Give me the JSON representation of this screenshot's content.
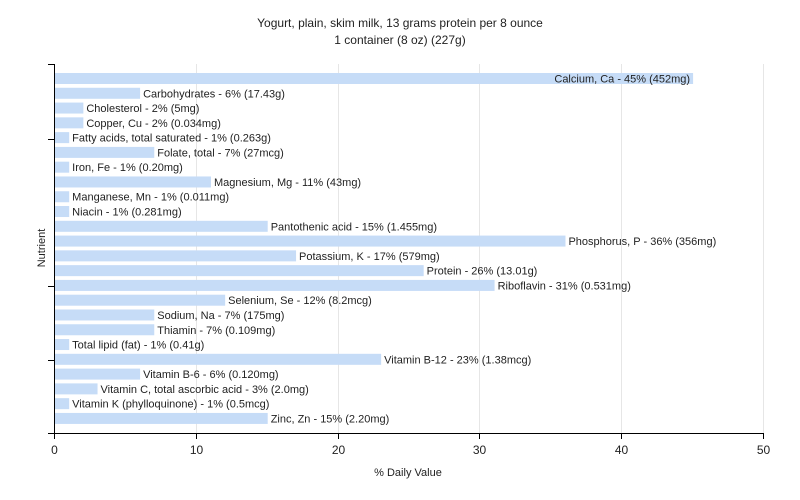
{
  "chart_data": {
    "type": "bar",
    "orientation": "horizontal",
    "title": "Yogurt, plain, skim milk, 13 grams protein per 8 ounce",
    "subtitle": "1 container (8 oz) (227g)",
    "xlabel": "% Daily Value",
    "ylabel": "Nutrient",
    "xlim": [
      0,
      50
    ],
    "xticks": [
      0,
      10,
      20,
      30,
      40,
      50
    ],
    "grid": "vertical",
    "bar_color": "#c6dcf7",
    "categories": [
      "Calcium, Ca",
      "Carbohydrates",
      "Cholesterol",
      "Copper, Cu",
      "Fatty acids, total saturated",
      "Folate, total",
      "Iron, Fe",
      "Magnesium, Mg",
      "Manganese, Mn",
      "Niacin",
      "Pantothenic acid",
      "Phosphorus, P",
      "Potassium, K",
      "Protein",
      "Riboflavin",
      "Selenium, Se",
      "Sodium, Na",
      "Thiamin",
      "Total lipid (fat)",
      "Vitamin B-12",
      "Vitamin B-6",
      "Vitamin C, total ascorbic acid",
      "Vitamin K (phylloquinone)",
      "Zinc, Zn"
    ],
    "values": [
      45,
      6,
      2,
      2,
      1,
      7,
      1,
      11,
      1,
      1,
      15,
      36,
      17,
      26,
      31,
      12,
      7,
      7,
      1,
      23,
      6,
      3,
      1,
      15
    ],
    "labels": [
      "Calcium, Ca - 45% (452mg)",
      "Carbohydrates - 6% (17.43g)",
      "Cholesterol - 2% (5mg)",
      "Copper, Cu - 2% (0.034mg)",
      "Fatty acids, total saturated - 1% (0.263g)",
      "Folate, total - 7% (27mcg)",
      "Iron, Fe - 1% (0.20mg)",
      "Magnesium, Mg - 11% (43mg)",
      "Manganese, Mn - 1% (0.011mg)",
      "Niacin - 1% (0.281mg)",
      "Pantothenic acid - 15% (1.455mg)",
      "Phosphorus, P - 36% (356mg)",
      "Potassium, K - 17% (579mg)",
      "Protein - 26% (13.01g)",
      "Riboflavin - 31% (0.531mg)",
      "Selenium, Se - 12% (8.2mcg)",
      "Sodium, Na - 7% (175mg)",
      "Thiamin - 7% (0.109mg)",
      "Total lipid (fat) - 1% (0.41g)",
      "Vitamin B-12 - 23% (1.38mcg)",
      "Vitamin B-6 - 6% (0.120mg)",
      "Vitamin C, total ascorbic acid - 3% (2.0mg)",
      "Vitamin K (phylloquinone) - 1% (0.5mcg)",
      "Zinc, Zn - 15% (2.20mg)"
    ]
  }
}
